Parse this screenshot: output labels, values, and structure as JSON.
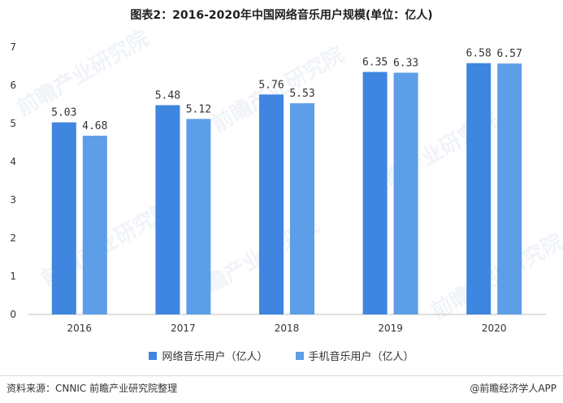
{
  "title": "图表2：2016-2020年中国网络音乐用户规模(单位：亿人)",
  "source": "资料来源：CNNIC 前瞻产业研究院整理",
  "brand": "@前瞻经济学人APP",
  "watermark": "前瞻产业研究院",
  "colors": {
    "series1": "#3e86e0",
    "series2": "#5c9ee8",
    "axis": "#bfbfbf",
    "text": "#333333"
  },
  "chart_data": {
    "type": "bar",
    "title": "图表2：2016-2020年中国网络音乐用户规模(单位：亿人)",
    "xlabel": "",
    "ylabel": "",
    "categories": [
      "2016",
      "2017",
      "2018",
      "2019",
      "2020"
    ],
    "ylim": [
      0,
      7
    ],
    "yticks": [
      "0",
      "1",
      "2",
      "3",
      "4",
      "5",
      "6",
      "7"
    ],
    "grid": false,
    "legend_position": "bottom",
    "series": [
      {
        "name": "网络音乐用户（亿人）",
        "values": [
          5.03,
          5.48,
          5.76,
          6.35,
          6.58
        ],
        "labels": [
          "5.03",
          "5.48",
          "5.76",
          "6.35",
          "6.58"
        ]
      },
      {
        "name": "手机音乐用户（亿人）",
        "values": [
          4.68,
          5.12,
          5.53,
          6.33,
          6.57
        ],
        "labels": [
          "4.68",
          "5.12",
          "5.53",
          "6.33",
          "6.57"
        ]
      }
    ]
  }
}
